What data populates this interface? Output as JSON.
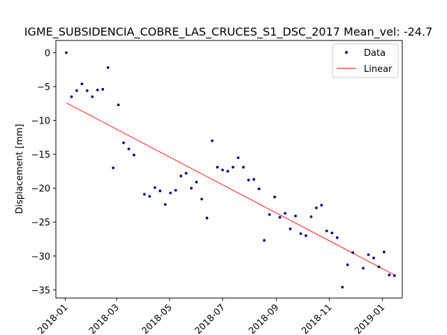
{
  "chart_data": {
    "type": "scatter",
    "title": "IGME_SUBSIDENCIA_COBRE_LAS_CRUCES_S1_DSC_2017     Mean_vel: -24.7",
    "xlabel": "",
    "ylabel": "Displacement [mm]",
    "xlim": [
      "2017-12-21",
      "2019-01-24"
    ],
    "ylim": [
      -36.2,
      1.8
    ],
    "x_ticks": [
      "2018-01",
      "2018-03",
      "2018-05",
      "2018-07",
      "2018-09",
      "2018-11",
      "2019-01"
    ],
    "y_ticks": [
      0,
      -5,
      -10,
      -15,
      -20,
      -25,
      -30,
      -35
    ],
    "legend": {
      "position": "upper right",
      "entries": [
        "Data",
        "Linear"
      ]
    },
    "colors": {
      "data": "#000080",
      "linear": "#ff0000"
    },
    "series": [
      {
        "name": "Data",
        "marker": "dot",
        "points": [
          [
            "2018-01-02",
            0.0
          ],
          [
            "2018-01-08",
            -6.5
          ],
          [
            "2018-01-14",
            -5.6
          ],
          [
            "2018-01-20",
            -4.6
          ],
          [
            "2018-01-26",
            -5.6
          ],
          [
            "2018-02-01",
            -6.5
          ],
          [
            "2018-02-07",
            -5.5
          ],
          [
            "2018-02-13",
            -5.4
          ],
          [
            "2018-02-19",
            -2.2
          ],
          [
            "2018-02-25",
            -17.0
          ],
          [
            "2018-03-03",
            -7.7
          ],
          [
            "2018-03-09",
            -13.3
          ],
          [
            "2018-03-15",
            -14.2
          ],
          [
            "2018-03-21",
            -15.1
          ],
          [
            "2018-04-02",
            -20.9
          ],
          [
            "2018-04-08",
            -21.2
          ],
          [
            "2018-04-14",
            -19.9
          ],
          [
            "2018-04-20",
            -20.4
          ],
          [
            "2018-04-26",
            -22.4
          ],
          [
            "2018-05-02",
            -20.7
          ],
          [
            "2018-05-08",
            -20.3
          ],
          [
            "2018-05-14",
            -18.2
          ],
          [
            "2018-05-20",
            -17.8
          ],
          [
            "2018-05-26",
            -20.0
          ],
          [
            "2018-06-01",
            -19.1
          ],
          [
            "2018-06-07",
            -21.6
          ],
          [
            "2018-06-13",
            -24.4
          ],
          [
            "2018-06-19",
            -13.0
          ],
          [
            "2018-06-25",
            -16.9
          ],
          [
            "2018-07-01",
            -17.3
          ],
          [
            "2018-07-07",
            -17.5
          ],
          [
            "2018-07-13",
            -16.9
          ],
          [
            "2018-07-19",
            -15.5
          ],
          [
            "2018-07-25",
            -16.9
          ],
          [
            "2018-07-31",
            -18.8
          ],
          [
            "2018-08-06",
            -18.7
          ],
          [
            "2018-08-12",
            -20.1
          ],
          [
            "2018-08-18",
            -27.7
          ],
          [
            "2018-08-24",
            -23.9
          ],
          [
            "2018-08-30",
            -21.3
          ],
          [
            "2018-09-05",
            -24.3
          ],
          [
            "2018-09-11",
            -23.7
          ],
          [
            "2018-09-17",
            -26.0
          ],
          [
            "2018-09-23",
            -24.1
          ],
          [
            "2018-09-29",
            -26.7
          ],
          [
            "2018-10-05",
            -27.0
          ],
          [
            "2018-10-11",
            -24.2
          ],
          [
            "2018-10-17",
            -22.9
          ],
          [
            "2018-10-23",
            -22.5
          ],
          [
            "2018-10-29",
            -26.3
          ],
          [
            "2018-11-04",
            -26.6
          ],
          [
            "2018-11-10",
            -27.3
          ],
          [
            "2018-11-16",
            -34.6
          ],
          [
            "2018-11-22",
            -31.3
          ],
          [
            "2018-11-28",
            -29.5
          ],
          [
            "2018-12-10",
            -31.8
          ],
          [
            "2018-12-16",
            -29.8
          ],
          [
            "2018-12-22",
            -30.3
          ],
          [
            "2018-12-28",
            -31.6
          ],
          [
            "2019-01-03",
            -29.4
          ],
          [
            "2019-01-09",
            -32.8
          ],
          [
            "2019-01-15",
            -32.9
          ]
        ]
      },
      {
        "name": "Linear",
        "type": "line",
        "points": [
          [
            "2018-01-02",
            -7.4
          ],
          [
            "2019-01-15",
            -32.8
          ]
        ]
      }
    ]
  }
}
